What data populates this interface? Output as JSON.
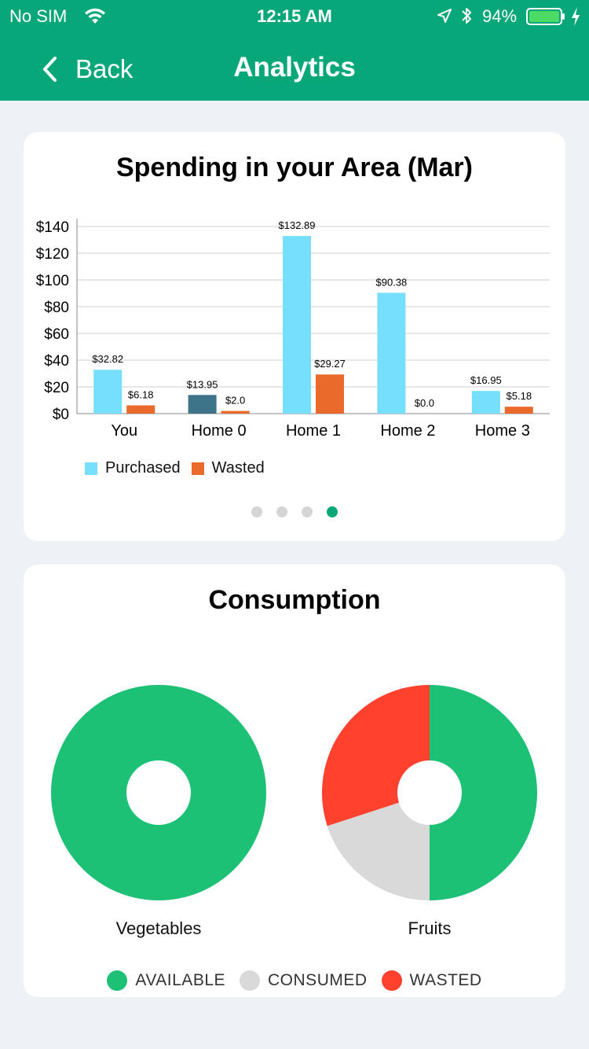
{
  "status_bar": {
    "carrier": "No SIM",
    "time": "12:15 AM",
    "battery_percent": "94%"
  },
  "nav": {
    "back_label": "Back",
    "title": "Analytics"
  },
  "spending": {
    "title": "Spending in your Area (Mar)",
    "legend": [
      {
        "label": "Purchased",
        "color": "#76dffe"
      },
      {
        "label": "Wasted",
        "color": "#ea6a2c"
      }
    ],
    "pager": {
      "count": 4,
      "active": 3
    }
  },
  "consumption": {
    "title": "Consumption",
    "charts": [
      {
        "label": "Vegetables"
      },
      {
        "label": "Fruits"
      }
    ],
    "legend": [
      {
        "label": "AVAILABLE",
        "color": "#1dc175"
      },
      {
        "label": "CONSUMED",
        "color": "#d9d9d9"
      },
      {
        "label": "WASTED",
        "color": "#ff412e"
      }
    ]
  },
  "chart_data": [
    {
      "type": "bar",
      "title": "Spending in your Area (Mar)",
      "categories": [
        "You",
        "Home 0",
        "Home 1",
        "Home 2",
        "Home 3"
      ],
      "series": [
        {
          "name": "Purchased",
          "values": [
            32.82,
            13.95,
            132.89,
            90.38,
            16.95
          ],
          "labels": [
            "$32.82",
            "$13.95",
            "$132.89",
            "$90.38",
            "$16.95"
          ],
          "color": "#76dffe",
          "highlight_color": "#3e7489",
          "highlight_index": 1
        },
        {
          "name": "Wasted",
          "values": [
            6.18,
            2.0,
            29.27,
            0.0,
            5.18
          ],
          "labels": [
            "$6.18",
            "$2.0",
            "$29.27",
            "$0.0",
            "$5.18"
          ],
          "color": "#ea6a2c"
        }
      ],
      "ylim": [
        0,
        140
      ],
      "yticks": [
        "$0",
        "$20",
        "$40",
        "$60",
        "$80",
        "$100",
        "$120",
        "$140"
      ],
      "ytick_values": [
        0,
        20,
        40,
        60,
        80,
        100,
        120,
        140
      ],
      "grid": true,
      "legend_position": "bottom-left"
    },
    {
      "type": "pie",
      "title": "Vegetables",
      "donut": true,
      "slices": [
        {
          "label": "AVAILABLE",
          "value": 100,
          "color": "#1dc175"
        },
        {
          "label": "CONSUMED",
          "value": 0,
          "color": "#d9d9d9"
        },
        {
          "label": "WASTED",
          "value": 0,
          "color": "#ff412e"
        }
      ]
    },
    {
      "type": "pie",
      "title": "Fruits",
      "donut": true,
      "slices": [
        {
          "label": "AVAILABLE",
          "value": 50,
          "color": "#1dc175"
        },
        {
          "label": "CONSUMED",
          "value": 20,
          "color": "#d9d9d9"
        },
        {
          "label": "WASTED",
          "value": 30,
          "color": "#ff412e"
        }
      ]
    }
  ]
}
